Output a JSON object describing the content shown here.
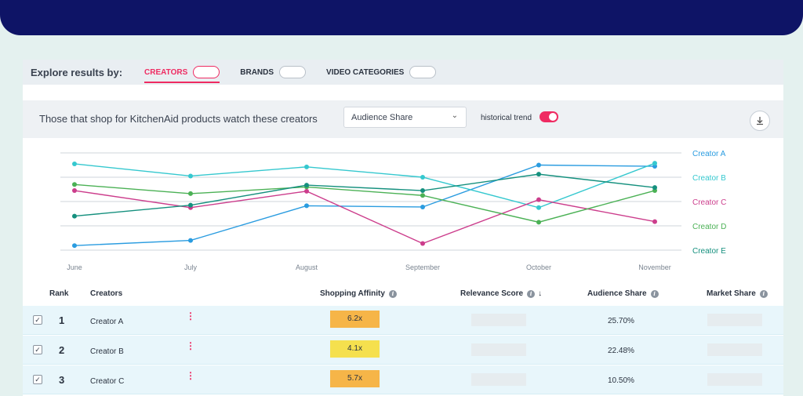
{
  "explore": {
    "label": "Explore results by:",
    "tabs": [
      {
        "label": "CREATORS",
        "active": true
      },
      {
        "label": "BRANDS",
        "active": false
      },
      {
        "label": "VIDEO CATEGORIES",
        "active": false
      }
    ]
  },
  "query": {
    "text": "Those that shop for KitchenAid products watch these creators",
    "metric_select": "Audience Share",
    "trend_label": "historical trend",
    "trend_on": true
  },
  "icons": {
    "download": "download-icon",
    "caret": "chevron-down-icon",
    "info": "info-icon",
    "sort": "arrow-down-icon",
    "kebab": "more-vertical-icon",
    "check": "checkbox-checked-icon"
  },
  "colors": {
    "accent": "#ef2b62",
    "navy": "#0e1466",
    "affinity_orange": "#f6b548",
    "affinity_yellow": "#f5e04e"
  },
  "chart_data": {
    "type": "line",
    "categories": [
      "June",
      "July",
      "August",
      "September",
      "October",
      "November"
    ],
    "legend_position": "right",
    "grid": true,
    "series": [
      {
        "name": "Creator A",
        "color": "#2a9ce0",
        "values": [
          0.75,
          1.6,
          7.3,
          7.1,
          14.0,
          13.8
        ]
      },
      {
        "name": "Creator B",
        "color": "#35c8cf",
        "values": [
          14.2,
          12.2,
          13.7,
          12.0,
          7.0,
          14.3
        ]
      },
      {
        "name": "Creator C",
        "color": "#cc3d8c",
        "values": [
          9.8,
          7.0,
          9.7,
          1.1,
          8.3,
          4.7
        ]
      },
      {
        "name": "Creator D",
        "color": "#4bb155",
        "values": [
          10.8,
          9.3,
          10.4,
          9.0,
          4.6,
          9.8
        ]
      },
      {
        "name": "Creator E",
        "color": "#15907e",
        "values": [
          5.6,
          7.4,
          10.7,
          9.8,
          12.5,
          10.3
        ]
      }
    ]
  },
  "table": {
    "headers": {
      "rank": "Rank",
      "creators": "Creators",
      "affinity": "Shopping Affinity",
      "relevance": "Relevance Score",
      "audience": "Audience Share",
      "market": "Market Share"
    },
    "rows": [
      {
        "rank": "1",
        "name": "Creator A",
        "affinity": "6.2x",
        "affinity_color": "#f6b548",
        "audience": "25.70%",
        "checked": true
      },
      {
        "rank": "2",
        "name": "Creator B",
        "affinity": "4.1x",
        "affinity_color": "#f5e04e",
        "audience": "22.48%",
        "checked": true
      },
      {
        "rank": "3",
        "name": "Creator C",
        "affinity": "5.7x",
        "affinity_color": "#f6b548",
        "audience": "10.50%",
        "checked": true
      }
    ]
  }
}
